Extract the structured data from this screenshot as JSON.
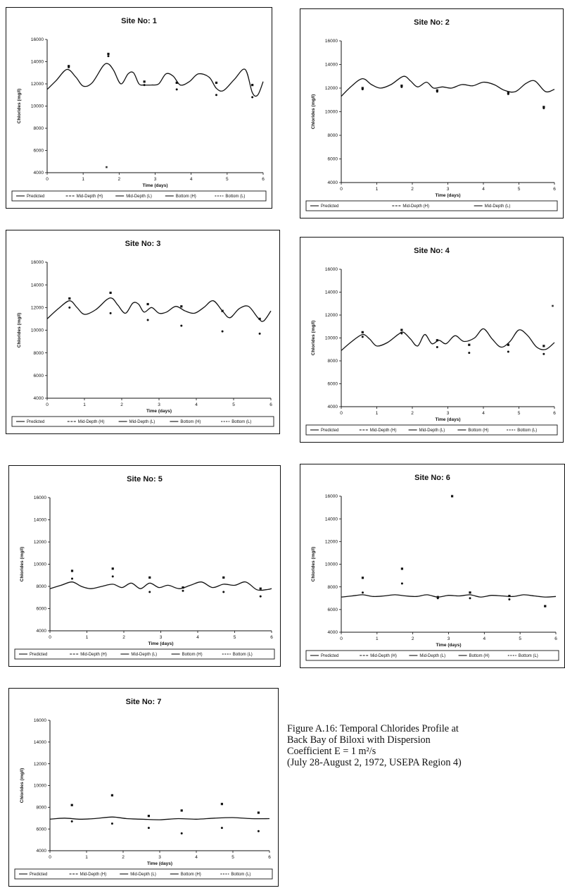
{
  "caption": {
    "line1": "Figure A.16: Temporal Chlorides Profile at",
    "line2": "Back Bay of Biloxi with Dispersion",
    "line3": "Coefficient E = 1 m²/s",
    "line4": "(July 28-August 2, 1972, USEPA Region 4)"
  },
  "chart_data": [
    {
      "type": "line",
      "title": "Site No: 1",
      "xlabel": "Time (days)",
      "ylabel": "Chlorides (mg/l)",
      "xlim": [
        0,
        6
      ],
      "ylim": [
        4000,
        16000
      ],
      "xticks": [
        "0",
        "1",
        "2",
        "3",
        "4",
        "5",
        "6"
      ],
      "yticks": [
        "4000",
        "6000",
        "8000",
        "10000",
        "12000",
        "14000",
        "16000"
      ],
      "legend": [
        "Predicted",
        "Mid-Depth (H)",
        "Mid-Depth (L)",
        "Bottom (H)",
        "Bottom (L)"
      ],
      "series": [
        {
          "name": "Predicted",
          "style": "line",
          "x": [
            0,
            0.25,
            0.55,
            0.8,
            1.0,
            1.25,
            1.55,
            1.7,
            1.85,
            2.05,
            2.25,
            2.4,
            2.55,
            2.7,
            2.9,
            3.1,
            3.3,
            3.5,
            3.7,
            3.95,
            4.2,
            4.5,
            4.7,
            4.9,
            5.2,
            5.5,
            5.7,
            5.85,
            6.0
          ],
          "y": [
            11500,
            12300,
            13300,
            12600,
            11800,
            12100,
            13600,
            13800,
            13200,
            12000,
            12900,
            13000,
            12000,
            11900,
            11900,
            12000,
            12900,
            12700,
            11900,
            12200,
            12900,
            12600,
            11600,
            11400,
            12400,
            13300,
            11200,
            11000,
            12200
          ]
        },
        {
          "name": "Mid-Depth (H)",
          "style": "marker",
          "x": [
            0.6,
            1.7,
            2.7,
            3.6,
            4.7,
            5.7
          ],
          "y": [
            13600,
            14700,
            12200,
            12100,
            12100,
            11900
          ]
        },
        {
          "name": "Mid-Depth (L)",
          "style": "marker",
          "x": [
            0.6,
            1.7,
            2.7,
            3.6,
            4.7,
            5.7
          ],
          "y": [
            13500,
            14500,
            11900,
            11500,
            11000,
            10800
          ]
        },
        {
          "name": "Bottom (H)",
          "style": "marker",
          "x": [
            1.65
          ],
          "y": [
            4500
          ]
        }
      ]
    },
    {
      "type": "line",
      "title": "Site No: 2",
      "xlabel": "Time (days)",
      "ylabel": "Chlorides (mg/l)",
      "xlim": [
        0,
        6
      ],
      "ylim": [
        4000,
        16000
      ],
      "xticks": [
        "0",
        "1",
        "2",
        "3",
        "4",
        "5",
        "6"
      ],
      "yticks": [
        "4000",
        "6000",
        "8000",
        "10000",
        "12000",
        "14000",
        "16000"
      ],
      "legend": [
        "Predicted",
        "Mid-Depth (H)",
        "Mid-Depth (L)"
      ],
      "series": [
        {
          "name": "Predicted",
          "style": "line",
          "x": [
            0,
            0.3,
            0.6,
            0.85,
            1.1,
            1.4,
            1.75,
            1.95,
            2.15,
            2.4,
            2.6,
            2.85,
            3.1,
            3.4,
            3.7,
            4.0,
            4.3,
            4.6,
            4.9,
            5.2,
            5.45,
            5.75,
            6.0
          ],
          "y": [
            11300,
            12200,
            12800,
            12300,
            12000,
            12300,
            13000,
            12600,
            12100,
            12500,
            12000,
            12100,
            12000,
            12300,
            12200,
            12500,
            12300,
            11800,
            11700,
            12400,
            12600,
            11700,
            11900
          ]
        },
        {
          "name": "Mid-Depth (H)",
          "style": "marker",
          "x": [
            0.6,
            1.7,
            2.7,
            4.7,
            5.7
          ],
          "y": [
            12000,
            12200,
            11800,
            11600,
            10400
          ]
        },
        {
          "name": "Mid-Depth (L)",
          "style": "marker",
          "x": [
            0.6,
            1.7,
            2.7,
            4.7,
            5.7
          ],
          "y": [
            11900,
            12100,
            11700,
            11500,
            10300
          ]
        }
      ]
    },
    {
      "type": "line",
      "title": "Site No: 3",
      "xlabel": "Time (days)",
      "ylabel": "Chlorides (mg/l)",
      "xlim": [
        0,
        6
      ],
      "ylim": [
        4000,
        16000
      ],
      "xticks": [
        "0",
        "1",
        "2",
        "3",
        "4",
        "5",
        "6"
      ],
      "yticks": [
        "4000",
        "6000",
        "8000",
        "10000",
        "12000",
        "14000",
        "16000"
      ],
      "legend": [
        "Predicted",
        "Mid-Depth (H)",
        "Mid-Depth (L)",
        "Bottom (H)",
        "Bottom (L)"
      ],
      "series": [
        {
          "name": "Predicted",
          "style": "line",
          "x": [
            0,
            0.3,
            0.6,
            0.8,
            1.0,
            1.3,
            1.6,
            1.75,
            1.9,
            2.1,
            2.3,
            2.45,
            2.6,
            2.8,
            3.0,
            3.2,
            3.45,
            3.7,
            3.95,
            4.2,
            4.45,
            4.7,
            4.9,
            5.15,
            5.4,
            5.65,
            5.8,
            6.0
          ],
          "y": [
            11000,
            11900,
            12600,
            12000,
            11400,
            11800,
            12700,
            12800,
            12200,
            11500,
            12400,
            12300,
            11600,
            12000,
            11500,
            11600,
            12100,
            11700,
            11500,
            12000,
            12600,
            11700,
            11100,
            11900,
            12100,
            11100,
            10800,
            11700
          ]
        },
        {
          "name": "Mid-Depth (H)",
          "style": "marker",
          "x": [
            0.6,
            1.7,
            2.7,
            3.6,
            4.7,
            5.7
          ],
          "y": [
            12800,
            13300,
            12300,
            12100,
            11700,
            11000
          ]
        },
        {
          "name": "Mid-Depth (L)",
          "style": "marker",
          "x": [
            0.6,
            1.7,
            2.7,
            3.6,
            4.7,
            5.7
          ],
          "y": [
            12000,
            11500,
            10900,
            10400,
            9900,
            9700
          ]
        }
      ]
    },
    {
      "type": "line",
      "title": "Site No: 4",
      "xlabel": "Time (days)",
      "ylabel": "Chlorides (mg/l)",
      "xlim": [
        0,
        6
      ],
      "ylim": [
        4000,
        16000
      ],
      "xticks": [
        "0",
        "1",
        "2",
        "3",
        "4",
        "5",
        "6"
      ],
      "yticks": [
        "4000",
        "6000",
        "8000",
        "10000",
        "12000",
        "14000",
        "16000"
      ],
      "legend": [
        "Predicted",
        "Mid-Depth (H)",
        "Mid-Depth (L)",
        "Bottom (H)",
        "Bottom (L)"
      ],
      "series": [
        {
          "name": "Predicted",
          "style": "line",
          "x": [
            0,
            0.3,
            0.6,
            0.8,
            1.0,
            1.3,
            1.6,
            1.75,
            1.95,
            2.15,
            2.35,
            2.55,
            2.75,
            2.95,
            3.2,
            3.45,
            3.75,
            4.0,
            4.25,
            4.5,
            4.75,
            5.0,
            5.25,
            5.5,
            5.75,
            6.0
          ],
          "y": [
            8900,
            9700,
            10300,
            9900,
            9300,
            9600,
            10300,
            10500,
            9900,
            9300,
            10300,
            9500,
            9800,
            9500,
            10200,
            9700,
            10000,
            10800,
            9900,
            9200,
            9700,
            10700,
            10200,
            9200,
            9000,
            9600
          ]
        },
        {
          "name": "Mid-Depth (H)",
          "style": "marker",
          "x": [
            0.6,
            1.7,
            2.7,
            3.6,
            4.7,
            5.7
          ],
          "y": [
            10500,
            10700,
            9800,
            9400,
            9400,
            9300
          ]
        },
        {
          "name": "Mid-Depth (L)",
          "style": "marker",
          "x": [
            0.6,
            1.7,
            2.7,
            3.6,
            4.7,
            5.7
          ],
          "y": [
            10100,
            10400,
            9200,
            8700,
            8800,
            8600
          ]
        },
        {
          "name": "Bottom (H)",
          "style": "marker",
          "x": [
            5.95
          ],
          "y": [
            12800
          ]
        }
      ]
    },
    {
      "type": "line",
      "title": "Site No: 5",
      "xlabel": "Time (days)",
      "ylabel": "Chlorides (mg/l)",
      "xlim": [
        0,
        6
      ],
      "ylim": [
        4000,
        16000
      ],
      "xticks": [
        "0",
        "1",
        "2",
        "3",
        "4",
        "5",
        "6"
      ],
      "yticks": [
        "4000",
        "6000",
        "8000",
        "10000",
        "12000",
        "14000",
        "16000"
      ],
      "legend": [
        "Predicted",
        "Mid-Depth (H)",
        "Mid-Depth (L)",
        "Bottom (H)",
        "Bottom (L)"
      ],
      "series": [
        {
          "name": "Predicted",
          "style": "line",
          "x": [
            0,
            0.3,
            0.6,
            0.85,
            1.1,
            1.4,
            1.7,
            1.95,
            2.2,
            2.45,
            2.7,
            2.95,
            3.2,
            3.5,
            3.8,
            4.1,
            4.4,
            4.7,
            5.0,
            5.3,
            5.6,
            5.85,
            6.0
          ],
          "y": [
            7800,
            8100,
            8400,
            8000,
            7800,
            8000,
            8200,
            7900,
            8300,
            7800,
            8300,
            7900,
            8100,
            7800,
            8100,
            8400,
            7900,
            8200,
            8100,
            8400,
            7700,
            7700,
            7800
          ]
        },
        {
          "name": "Mid-Depth (H)",
          "style": "marker",
          "x": [
            0.6,
            1.7,
            2.7,
            3.6,
            4.7,
            5.7
          ],
          "y": [
            9400,
            9600,
            8800,
            7900,
            8800,
            7800
          ]
        },
        {
          "name": "Mid-Depth (L)",
          "style": "marker",
          "x": [
            0.6,
            1.7,
            2.7,
            3.6,
            4.7,
            5.7
          ],
          "y": [
            8700,
            8900,
            7500,
            7600,
            7500,
            7100
          ]
        }
      ]
    },
    {
      "type": "line",
      "title": "Site No: 6",
      "xlabel": "Time (days)",
      "ylabel": "Chlorides (mg/l)",
      "xlim": [
        0,
        6
      ],
      "ylim": [
        4000,
        16000
      ],
      "xticks": [
        "0",
        "1",
        "2",
        "3",
        "4",
        "5",
        "6"
      ],
      "yticks": [
        "4000",
        "6000",
        "8000",
        "10000",
        "12000",
        "14000",
        "16000"
      ],
      "legend": [
        "Predicted",
        "Mid-Depth (H)",
        "Mid-Depth (L)",
        "Bottom (H)",
        "Bottom (L)"
      ],
      "series": [
        {
          "name": "Predicted",
          "style": "line",
          "x": [
            0,
            0.3,
            0.6,
            0.9,
            1.2,
            1.5,
            1.8,
            2.1,
            2.4,
            2.7,
            3.0,
            3.3,
            3.6,
            3.9,
            4.2,
            4.5,
            4.8,
            5.1,
            5.4,
            5.7,
            6.0
          ],
          "y": [
            7100,
            7200,
            7300,
            7150,
            7200,
            7300,
            7200,
            7150,
            7300,
            7100,
            7250,
            7200,
            7300,
            7100,
            7250,
            7200,
            7150,
            7300,
            7200,
            7100,
            7150
          ]
        },
        {
          "name": "Mid-Depth (H)",
          "style": "marker",
          "x": [
            0.6,
            1.7,
            2.7,
            3.1,
            3.6,
            4.7,
            5.7
          ],
          "y": [
            8800,
            9600,
            7100,
            16000,
            7500,
            7200,
            6300
          ]
        },
        {
          "name": "Mid-Depth (L)",
          "style": "marker",
          "x": [
            0.6,
            1.7,
            2.7,
            3.6,
            4.7,
            5.7
          ],
          "y": [
            7500,
            8300,
            7000,
            7000,
            6900,
            6300
          ]
        }
      ]
    },
    {
      "type": "line",
      "title": "Site No: 7",
      "xlabel": "Time (days)",
      "ylabel": "Chlorides (mg/l)",
      "xlim": [
        0,
        6
      ],
      "ylim": [
        4000,
        16000
      ],
      "xticks": [
        "0",
        "1",
        "2",
        "3",
        "4",
        "5",
        "6"
      ],
      "yticks": [
        "4000",
        "6000",
        "8000",
        "10000",
        "12000",
        "14000",
        "16000"
      ],
      "legend": [
        "Predicted",
        "Mid-Depth (H)",
        "Mid-Depth (L)",
        "Bottom (H)",
        "Bottom (L)"
      ],
      "series": [
        {
          "name": "Predicted",
          "style": "line",
          "x": [
            0,
            0.4,
            0.8,
            1.2,
            1.7,
            2.1,
            2.5,
            3.0,
            3.5,
            4.0,
            4.5,
            5.0,
            5.5,
            6.0
          ],
          "y": [
            6900,
            7000,
            6900,
            6950,
            7100,
            6950,
            6900,
            6850,
            6950,
            6900,
            7000,
            7050,
            6950,
            6950
          ]
        },
        {
          "name": "Mid-Depth (H)",
          "style": "marker",
          "x": [
            0.6,
            1.7,
            2.7,
            3.6,
            4.7,
            5.7
          ],
          "y": [
            8200,
            9100,
            7200,
            7700,
            8300,
            7500
          ]
        },
        {
          "name": "Mid-Depth (L)",
          "style": "marker",
          "x": [
            0.6,
            1.7,
            2.7,
            3.6,
            4.7,
            5.7
          ],
          "y": [
            6700,
            6500,
            6100,
            5600,
            6100,
            5800
          ]
        }
      ]
    }
  ]
}
